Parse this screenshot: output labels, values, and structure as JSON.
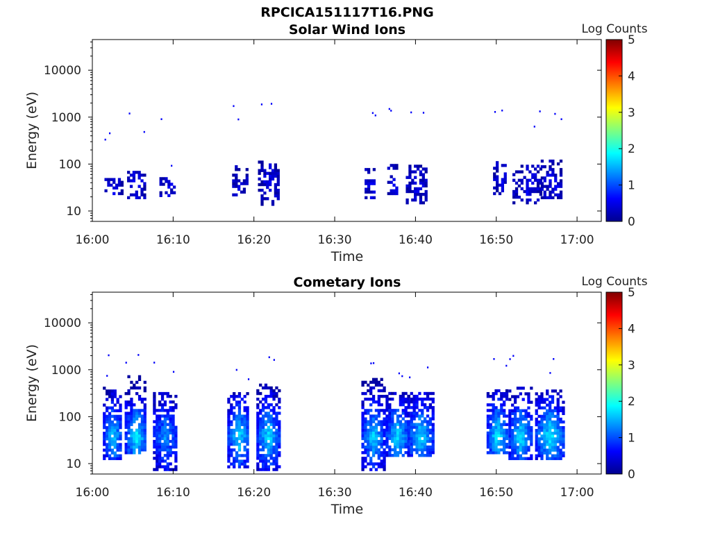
{
  "figure": {
    "title": "RPCICA151117T16.PNG"
  },
  "colors": {
    "colormap": "jet",
    "background": "#ffffff",
    "axis": "#000000"
  },
  "chart_data": [
    {
      "type": "heatmap",
      "title": "Solar Wind Ions",
      "xlabel": "Time",
      "ylabel": "Energy (eV)",
      "y_scale": "log",
      "xlim": [
        "16:00",
        "17:03"
      ],
      "ylim": [
        6,
        45000
      ],
      "x_ticks": [
        "16:00",
        "16:10",
        "16:20",
        "16:30",
        "16:40",
        "16:50",
        "17:00"
      ],
      "y_ticks": [
        "10",
        "100",
        "1000",
        "10000"
      ],
      "colorbar": {
        "label": "Log Counts",
        "range": [
          0,
          5
        ],
        "ticks": [
          "0",
          "1",
          "2",
          "3",
          "4",
          "5"
        ]
      },
      "bursts": [
        {
          "start": "16:01.5",
          "end": "16:03.5",
          "e_low": 22,
          "e_high": 48,
          "level": 0.5
        },
        {
          "start": "16:04.3",
          "end": "16:06.5",
          "e_low": 18,
          "e_high": 65,
          "level": 0.55
        },
        {
          "start": "16:08.3",
          "end": "16:10.2",
          "e_low": 20,
          "e_high": 48,
          "level": 0.5
        },
        {
          "start": "16:17.3",
          "end": "16:19.0",
          "e_low": 18,
          "e_high": 90,
          "level": 0.5
        },
        {
          "start": "16:20.5",
          "end": "16:23.0",
          "e_low": 13,
          "e_high": 110,
          "level": 0.5
        },
        {
          "start": "16:33.7",
          "end": "16:35.0",
          "e_low": 18,
          "e_high": 80,
          "level": 0.5
        },
        {
          "start": "16:36.5",
          "end": "16:37.8",
          "e_low": 22,
          "e_high": 90,
          "level": 0.5
        },
        {
          "start": "16:38.8",
          "end": "16:41.3",
          "e_low": 14,
          "e_high": 90,
          "level": 0.5
        },
        {
          "start": "16:49.6",
          "end": "16:51.2",
          "e_low": 22,
          "e_high": 110,
          "level": 0.55
        },
        {
          "start": "16:52.0",
          "end": "16:55.5",
          "e_low": 14,
          "e_high": 90,
          "level": 0.55
        },
        {
          "start": "16:55.5",
          "end": "16:58.0",
          "e_low": 18,
          "e_high": 110,
          "level": 0.55
        }
      ]
    },
    {
      "type": "heatmap",
      "title": "Cometary Ions",
      "xlabel": "Time",
      "ylabel": "Energy (eV)",
      "y_scale": "log",
      "xlim": [
        "16:00",
        "17:03"
      ],
      "ylim": [
        6,
        45000
      ],
      "x_ticks": [
        "16:00",
        "16:10",
        "16:20",
        "16:30",
        "16:40",
        "16:50",
        "17:00"
      ],
      "y_ticks": [
        "10",
        "100",
        "1000",
        "10000"
      ],
      "colorbar": {
        "label": "Log Counts",
        "range": [
          0,
          5
        ],
        "ticks": [
          "0",
          "1",
          "2",
          "3",
          "4",
          "5"
        ]
      },
      "bursts": [
        {
          "start": "16:01.3",
          "end": "16:03.6",
          "e_low": 12,
          "e_high": 400,
          "level": 1.7
        },
        {
          "start": "16:04.0",
          "end": "16:06.6",
          "e_low": 16,
          "e_high": 700,
          "level": 1.9
        },
        {
          "start": "16:07.5",
          "end": "16:10.3",
          "e_low": 7,
          "e_high": 300,
          "level": 1.4
        },
        {
          "start": "16:16.7",
          "end": "16:19.3",
          "e_low": 8,
          "e_high": 300,
          "level": 1.8
        },
        {
          "start": "16:20.3",
          "end": "16:23.0",
          "e_low": 7,
          "e_high": 500,
          "level": 1.8
        },
        {
          "start": "16:33.3",
          "end": "16:36.0",
          "e_low": 7,
          "e_high": 600,
          "level": 1.7
        },
        {
          "start": "16:36.3",
          "end": "16:39.0",
          "e_low": 14,
          "e_high": 300,
          "level": 1.8
        },
        {
          "start": "16:39.0",
          "end": "16:42.0",
          "e_low": 14,
          "e_high": 300,
          "level": 1.8
        },
        {
          "start": "16:48.8",
          "end": "16:51.3",
          "e_low": 16,
          "e_high": 350,
          "level": 1.9
        },
        {
          "start": "16:51.5",
          "end": "16:54.3",
          "e_low": 12,
          "e_high": 400,
          "level": 1.8
        },
        {
          "start": "16:54.8",
          "end": "16:58.3",
          "e_low": 12,
          "e_high": 350,
          "level": 1.9
        }
      ]
    }
  ]
}
